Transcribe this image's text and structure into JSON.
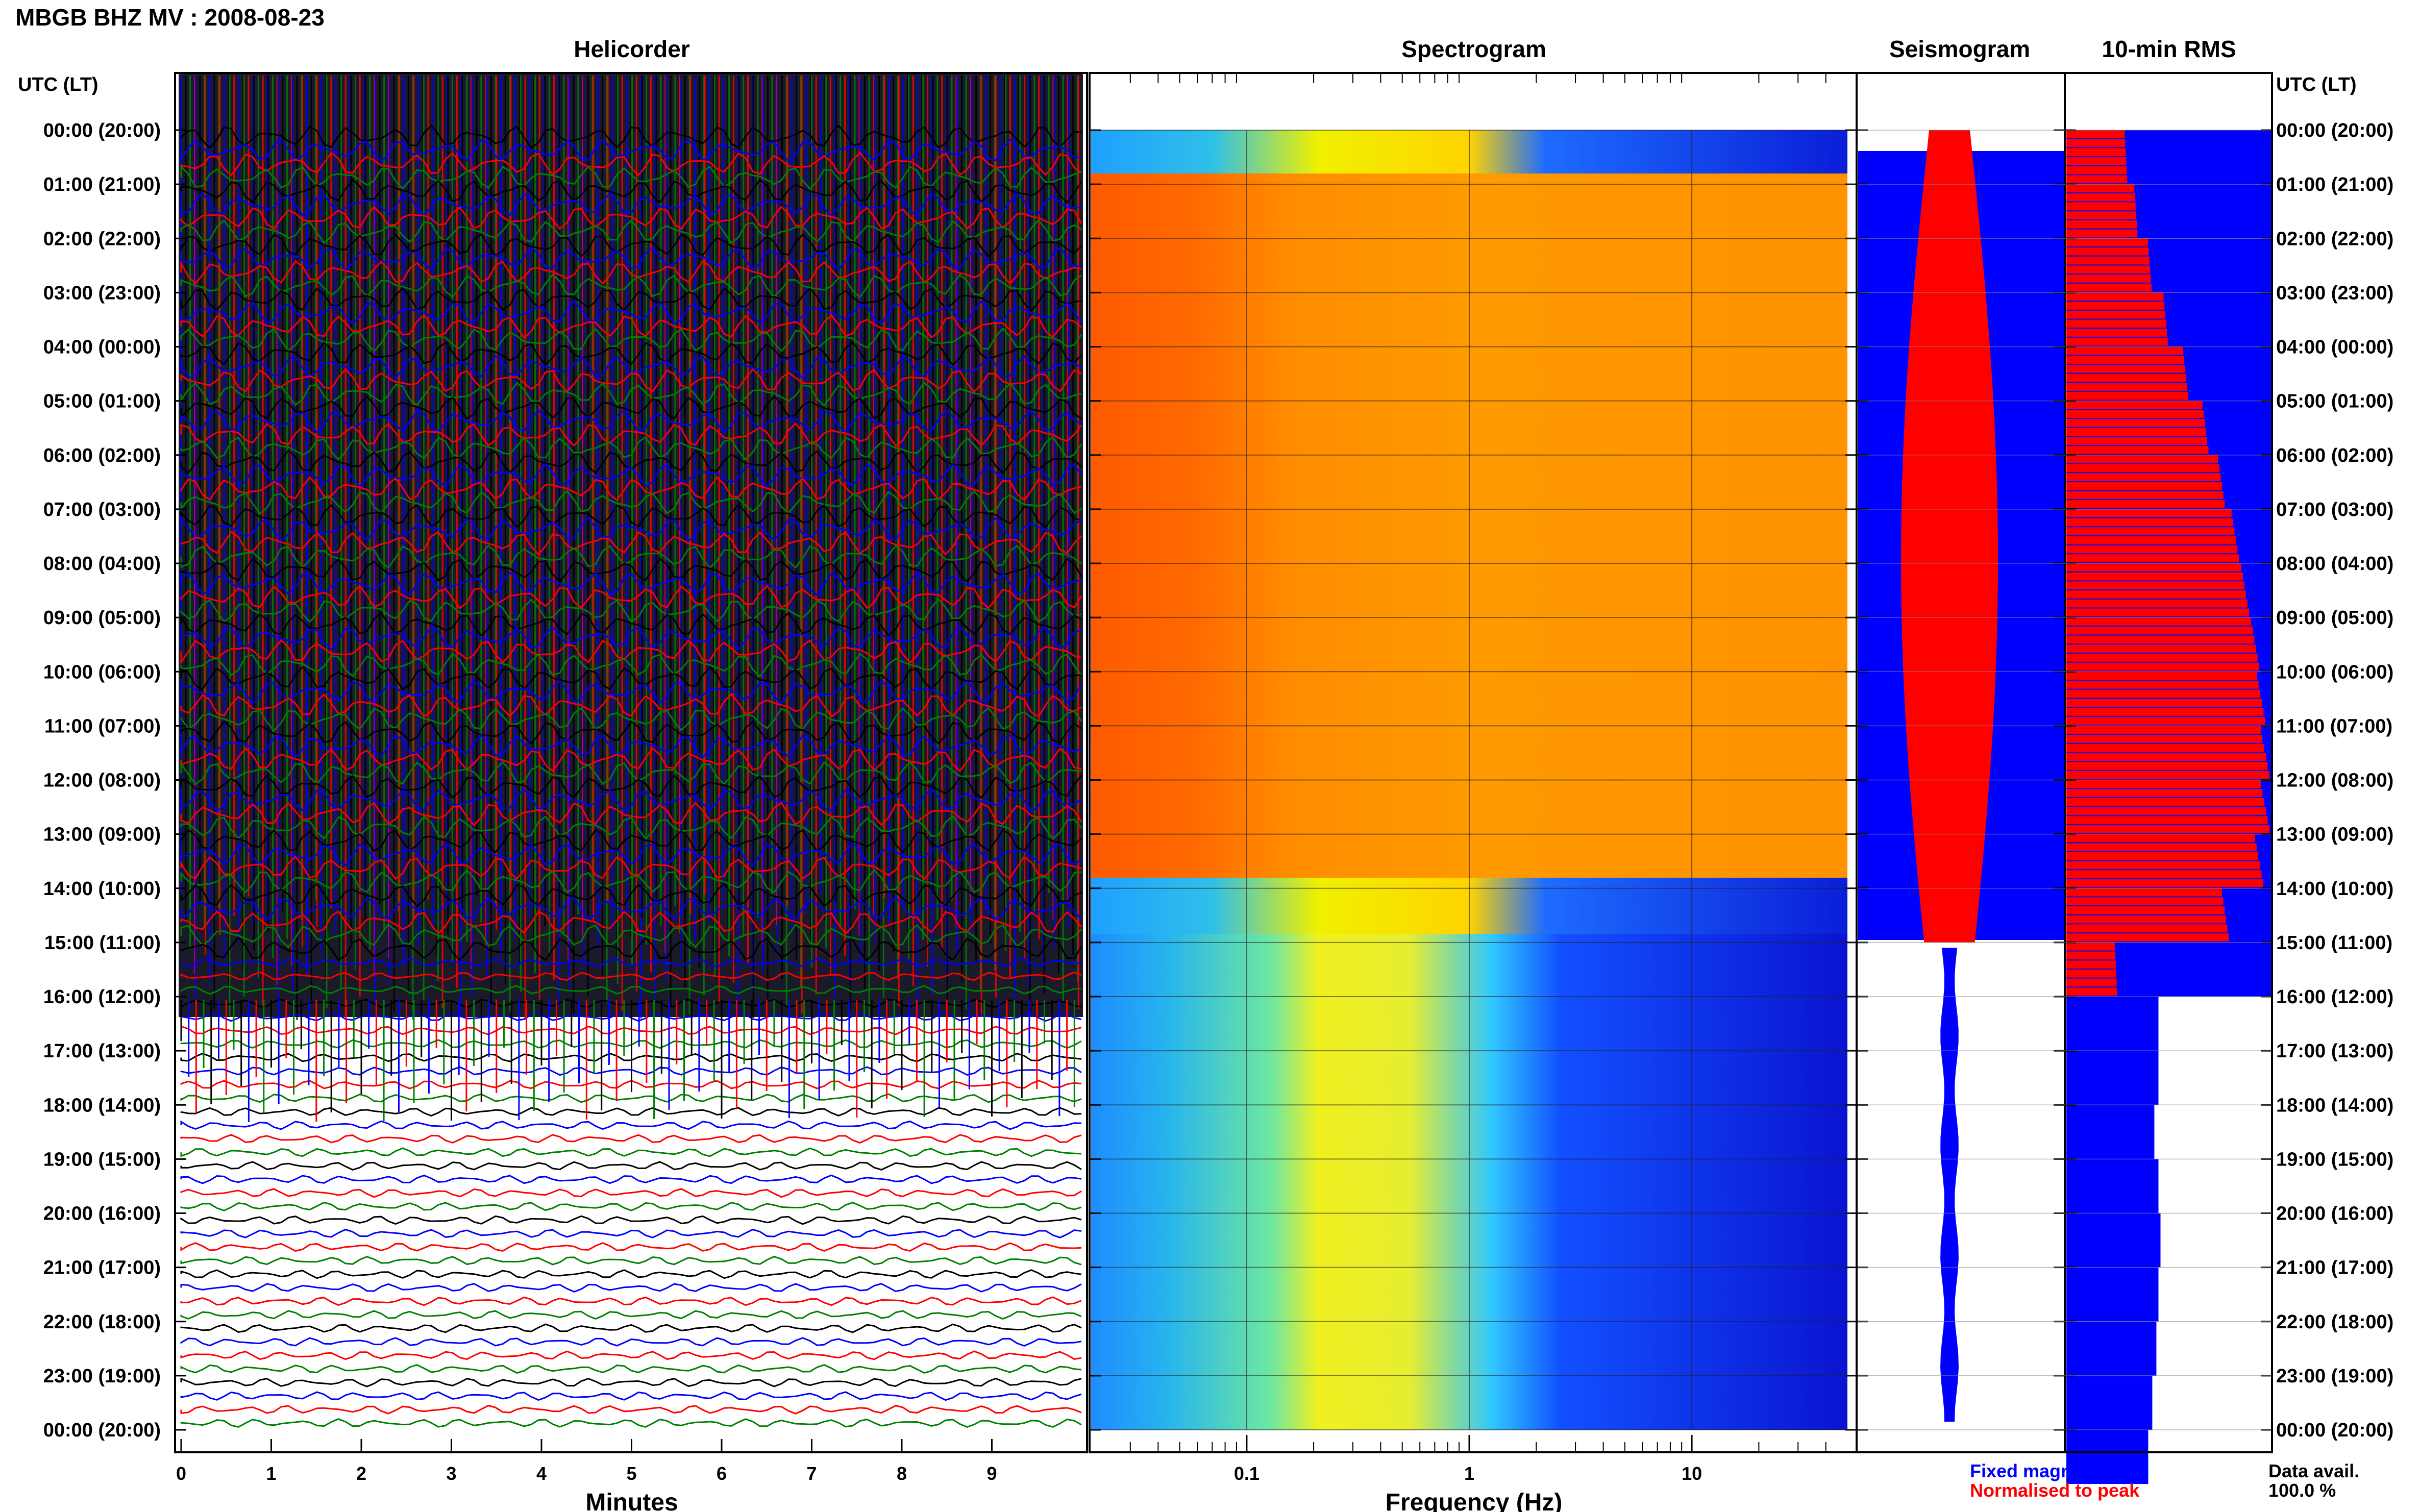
{
  "header": {
    "title": "MBGB BHZ MV : 2008-08-23"
  },
  "panels": {
    "helicorder": "Helicorder",
    "spectrogram": "Spectrogram",
    "seismogram": "Seismogram",
    "rms": "10-min RMS"
  },
  "axis": {
    "time_label": "UTC (LT)",
    "helicorder_xlabel": "Minutes",
    "spectrogram_xlabel": "Frequency (Hz)"
  },
  "time_ticks": [
    "00:00 (20:00)",
    "01:00 (21:00)",
    "02:00 (22:00)",
    "03:00 (23:00)",
    "04:00 (00:00)",
    "05:00 (01:00)",
    "06:00 (02:00)",
    "07:00 (03:00)",
    "08:00 (04:00)",
    "09:00 (05:00)",
    "10:00 (06:00)",
    "11:00 (07:00)",
    "12:00 (08:00)",
    "13:00 (09:00)",
    "14:00 (10:00)",
    "15:00 (11:00)",
    "16:00 (12:00)",
    "17:00 (13:00)",
    "18:00 (14:00)",
    "19:00 (15:00)",
    "20:00 (16:00)",
    "21:00 (17:00)",
    "22:00 (18:00)",
    "23:00 (19:00)",
    "00:00 (20:00)"
  ],
  "minute_ticks": [
    "0",
    "1",
    "2",
    "3",
    "4",
    "5",
    "6",
    "7",
    "8",
    "9"
  ],
  "freq_ticks": [
    "0.1",
    "1",
    "10"
  ],
  "legend": {
    "fixed": "Fixed magnification",
    "normalised": "Normalised to peak",
    "fixed_color": "#0000ff",
    "normalised_color": "#ff0000"
  },
  "data_avail": {
    "label": "Data avail.",
    "value": "100.0 %"
  },
  "chart_data": {
    "type": "heatmap",
    "station": "MBGB BHZ MV",
    "date": "2008-08-23",
    "time_axis_hours": [
      0,
      24
    ],
    "helicorder_minutes": [
      0,
      10
    ],
    "frequency_range_hz": [
      0.02,
      50
    ],
    "frequency_scale": "log",
    "high_amplitude_period_utc_hours": [
      0,
      15.1
    ],
    "trace_colors": [
      "#000000",
      "#0000ff",
      "#ff0000",
      "#008000"
    ],
    "rms_normalised_hourly": [
      0.3,
      0.35,
      0.42,
      0.5,
      0.6,
      0.7,
      0.78,
      0.85,
      0.9,
      0.95,
      0.98,
      1.0,
      1.0,
      0.97,
      0.8,
      0.25
    ],
    "rms_fixed_hourly": [
      1.0,
      1.0,
      1.0,
      1.0,
      1.0,
      1.0,
      1.0,
      1.0,
      1.0,
      1.0,
      1.0,
      1.0,
      1.0,
      1.0,
      1.0,
      1.0,
      0.45,
      0.45,
      0.43,
      0.45,
      0.46,
      0.45,
      0.44,
      0.42,
      0.4
    ]
  }
}
